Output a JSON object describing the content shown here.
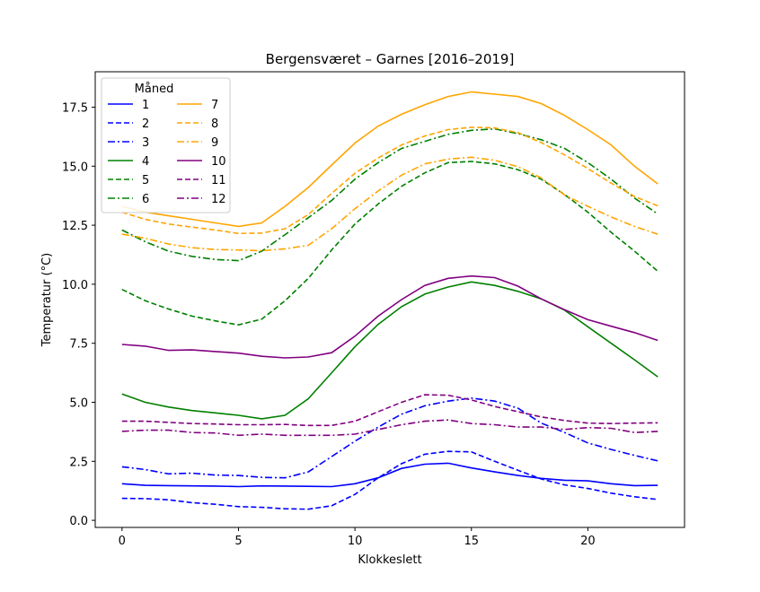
{
  "chart_data": {
    "type": "line",
    "title": "Bergensværet – Garnes [2016–2019]",
    "xlabel": "Klokkeslett",
    "ylabel": "Temperatur (°C)",
    "xlim": [
      -1.15,
      24.15
    ],
    "ylim": [
      -0.3,
      19.0
    ],
    "xticks": [
      0,
      5,
      10,
      15,
      20
    ],
    "yticks": [
      0.0,
      2.5,
      5.0,
      7.5,
      10.0,
      12.5,
      15.0,
      17.5
    ],
    "ytick_labels": [
      "0.0",
      "2.5",
      "5.0",
      "7.5",
      "10.0",
      "12.5",
      "15.0",
      "17.5"
    ],
    "grid": false,
    "legend": {
      "title": "Måned",
      "position": "top-left",
      "columns": 2
    },
    "x": [
      0,
      1,
      2,
      3,
      4,
      5,
      6,
      7,
      8,
      9,
      10,
      11,
      12,
      13,
      14,
      15,
      16,
      17,
      18,
      19,
      20,
      21,
      22,
      23
    ],
    "series": [
      {
        "name": "1",
        "color": "#0000ff",
        "dash": "solid",
        "values": [
          1.55,
          1.48,
          1.47,
          1.46,
          1.45,
          1.43,
          1.46,
          1.45,
          1.44,
          1.43,
          1.55,
          1.8,
          2.2,
          2.38,
          2.42,
          2.22,
          2.05,
          1.9,
          1.78,
          1.7,
          1.67,
          1.55,
          1.47,
          1.48
        ]
      },
      {
        "name": "2",
        "color": "#0000ff",
        "dash": "dashed",
        "values": [
          0.93,
          0.92,
          0.87,
          0.75,
          0.68,
          0.58,
          0.55,
          0.49,
          0.47,
          0.62,
          1.1,
          1.8,
          2.4,
          2.8,
          2.92,
          2.9,
          2.5,
          2.12,
          1.75,
          1.5,
          1.35,
          1.15,
          1.0,
          0.88
        ]
      },
      {
        "name": "3",
        "color": "#0000ff",
        "dash": "dashdot",
        "values": [
          2.27,
          2.15,
          1.97,
          2.0,
          1.92,
          1.9,
          1.82,
          1.8,
          2.05,
          2.7,
          3.35,
          3.95,
          4.5,
          4.85,
          5.05,
          5.18,
          5.05,
          4.75,
          4.12,
          3.72,
          3.28,
          3.0,
          2.75,
          2.52
        ]
      },
      {
        "name": "4",
        "color": "#008000",
        "dash": "solid",
        "values": [
          5.35,
          5.0,
          4.8,
          4.65,
          4.55,
          4.45,
          4.3,
          4.45,
          5.15,
          6.25,
          7.35,
          8.3,
          9.05,
          9.58,
          9.88,
          10.1,
          9.95,
          9.7,
          9.38,
          8.9,
          8.2,
          7.5,
          6.8,
          6.08
        ]
      },
      {
        "name": "5",
        "color": "#008000",
        "dash": "dashed",
        "values": [
          9.78,
          9.3,
          8.95,
          8.65,
          8.45,
          8.28,
          8.52,
          9.3,
          10.25,
          11.45,
          12.55,
          13.4,
          14.15,
          14.72,
          15.15,
          15.2,
          15.1,
          14.85,
          14.45,
          13.8,
          13.05,
          12.2,
          11.4,
          10.55
        ]
      },
      {
        "name": "6",
        "color": "#008000",
        "dash": "dashdot",
        "values": [
          12.3,
          11.8,
          11.4,
          11.18,
          11.05,
          11.0,
          11.4,
          12.1,
          12.82,
          13.55,
          14.45,
          15.15,
          15.75,
          16.05,
          16.35,
          16.52,
          16.58,
          16.38,
          16.12,
          15.75,
          15.15,
          14.45,
          13.65,
          12.98
        ]
      },
      {
        "name": "7",
        "color": "#ffa500",
        "dash": "solid",
        "values": [
          13.3,
          13.05,
          12.9,
          12.75,
          12.6,
          12.45,
          12.6,
          13.3,
          14.1,
          15.05,
          15.98,
          16.7,
          17.2,
          17.6,
          17.95,
          18.15,
          18.05,
          17.95,
          17.65,
          17.15,
          16.55,
          15.9,
          15.0,
          14.25
        ]
      },
      {
        "name": "8",
        "color": "#ffa500",
        "dash": "dashed",
        "values": [
          13.05,
          12.75,
          12.55,
          12.42,
          12.3,
          12.15,
          12.17,
          12.35,
          12.95,
          13.85,
          14.7,
          15.35,
          15.9,
          16.28,
          16.55,
          16.65,
          16.62,
          16.42,
          16.0,
          15.48,
          14.9,
          14.28,
          13.72,
          13.32
        ]
      },
      {
        "name": "9",
        "color": "#ffa500",
        "dash": "dashdot",
        "values": [
          12.12,
          11.95,
          11.7,
          11.55,
          11.47,
          11.45,
          11.42,
          11.5,
          11.65,
          12.35,
          13.2,
          13.95,
          14.62,
          15.1,
          15.3,
          15.38,
          15.25,
          14.98,
          14.5,
          13.78,
          13.3,
          12.85,
          12.45,
          12.12
        ]
      },
      {
        "name": "10",
        "color": "#800080",
        "dash": "solid",
        "values": [
          7.45,
          7.38,
          7.2,
          7.22,
          7.15,
          7.08,
          6.95,
          6.88,
          6.92,
          7.1,
          7.8,
          8.65,
          9.35,
          9.95,
          10.25,
          10.35,
          10.28,
          9.92,
          9.38,
          8.92,
          8.5,
          8.22,
          7.95,
          7.62
        ]
      },
      {
        "name": "11",
        "color": "#800080",
        "dash": "dashed",
        "values": [
          4.2,
          4.2,
          4.15,
          4.1,
          4.08,
          4.05,
          4.05,
          4.06,
          4.02,
          4.02,
          4.2,
          4.6,
          5.0,
          5.32,
          5.3,
          5.1,
          4.82,
          4.6,
          4.38,
          4.23,
          4.12,
          4.1,
          4.12,
          4.13
        ]
      },
      {
        "name": "12",
        "color": "#800080",
        "dash": "dashdot",
        "values": [
          3.77,
          3.82,
          3.82,
          3.72,
          3.7,
          3.6,
          3.65,
          3.6,
          3.6,
          3.6,
          3.65,
          3.85,
          4.05,
          4.2,
          4.25,
          4.1,
          4.05,
          3.95,
          3.95,
          3.85,
          3.93,
          3.9,
          3.72,
          3.77
        ]
      }
    ]
  }
}
